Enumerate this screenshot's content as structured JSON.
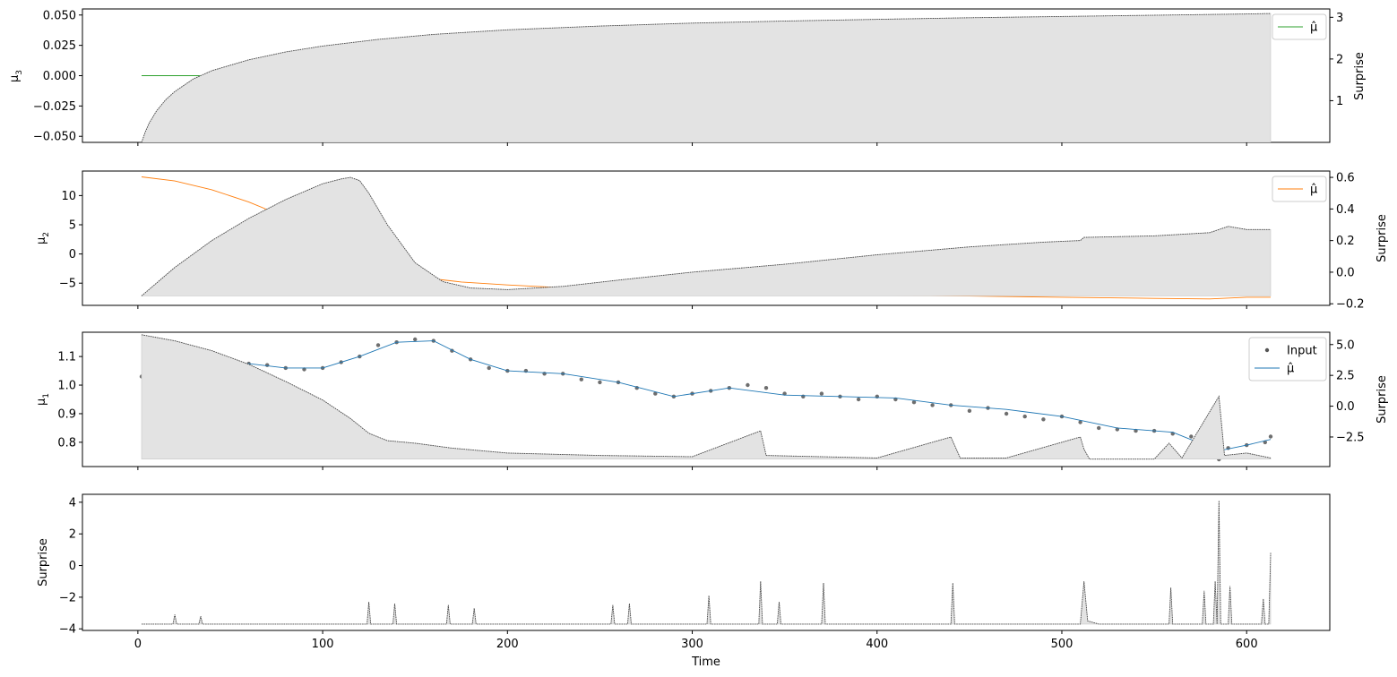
{
  "chart_data": [
    {
      "type": "line",
      "panel": "mu3",
      "ylabel": "μ",
      "ylabel_sub": "3",
      "ylim": [
        -0.055,
        0.055
      ],
      "yticks": [
        -0.05,
        -0.025,
        0.0,
        0.025,
        0.05
      ],
      "ytick_labels": [
        "−0.050",
        "−0.025",
        "0.000",
        "0.025",
        "0.050"
      ],
      "y2label": "Surprise",
      "y2lim": [
        0.0,
        3.2
      ],
      "y2ticks": [
        1,
        2,
        3
      ],
      "y2tick_labels": [
        "1",
        "2",
        "3"
      ],
      "xlim": [
        -30,
        645
      ],
      "legend": {
        "placement": "top-right",
        "entries": [
          {
            "label": "μ̂",
            "color": "#2ca02c",
            "marker": "line"
          }
        ]
      },
      "series": [
        {
          "name": "μ̂",
          "axis": "left",
          "color": "#2ca02c",
          "x": [
            2,
            613
          ],
          "values": [
            0.0,
            0.0
          ]
        },
        {
          "name": "Surprise",
          "axis": "right",
          "style": "filled-dotted",
          "color": "#444444",
          "x": [
            2,
            4,
            6,
            10,
            15,
            20,
            30,
            40,
            60,
            80,
            100,
            130,
            160,
            200,
            250,
            300,
            350,
            400,
            450,
            500,
            550,
            600,
            613
          ],
          "values": [
            0.0,
            0.25,
            0.45,
            0.75,
            1.02,
            1.22,
            1.52,
            1.72,
            1.98,
            2.17,
            2.31,
            2.47,
            2.59,
            2.7,
            2.79,
            2.86,
            2.91,
            2.95,
            2.99,
            3.02,
            3.05,
            3.08,
            3.09
          ]
        }
      ]
    },
    {
      "type": "line",
      "panel": "mu2",
      "ylabel": "μ",
      "ylabel_sub": "2",
      "ylim": [
        -8.8,
        14.2
      ],
      "yticks": [
        -5,
        0,
        5,
        10
      ],
      "ytick_labels": [
        "−5",
        "0",
        "5",
        "10"
      ],
      "y2label": "Surprise",
      "y2lim": [
        -0.21,
        0.64
      ],
      "y2ticks": [
        -0.2,
        0.0,
        0.2,
        0.4,
        0.6
      ],
      "y2tick_labels": [
        "−0.2",
        "0.0",
        "0.2",
        "0.4",
        "0.6"
      ],
      "xlim": [
        -30,
        645
      ],
      "legend": {
        "placement": "top-right",
        "entries": [
          {
            "label": "μ̂",
            "color": "#ff7f0e",
            "marker": "line"
          }
        ]
      },
      "series": [
        {
          "name": "μ̂",
          "axis": "left",
          "color": "#ff7f0e",
          "x": [
            2,
            20,
            40,
            60,
            80,
            100,
            115,
            130,
            150,
            175,
            200,
            250,
            300,
            350,
            400,
            450,
            500,
            550,
            580,
            600,
            613
          ],
          "values": [
            13.2,
            12.5,
            11.0,
            8.9,
            6.3,
            3.3,
            0.9,
            -1.9,
            -3.9,
            -4.8,
            -5.3,
            -6.1,
            -6.6,
            -6.9,
            -7.0,
            -7.2,
            -7.4,
            -7.6,
            -7.7,
            -7.4,
            -7.4
          ]
        },
        {
          "name": "Surprise",
          "axis": "right",
          "style": "filled-dotted",
          "color": "#444444",
          "x": [
            2,
            20,
            40,
            60,
            80,
            100,
            110,
            115,
            120,
            125,
            135,
            150,
            165,
            180,
            200,
            230,
            260,
            300,
            350,
            400,
            450,
            490,
            510,
            512,
            550,
            580,
            590,
            600,
            613
          ],
          "values": [
            -0.15,
            0.03,
            0.2,
            0.34,
            0.46,
            0.56,
            0.59,
            0.6,
            0.58,
            0.5,
            0.3,
            0.06,
            -0.06,
            -0.1,
            -0.11,
            -0.09,
            -0.05,
            0.0,
            0.05,
            0.11,
            0.16,
            0.19,
            0.2,
            0.22,
            0.23,
            0.25,
            0.29,
            0.27,
            0.27
          ]
        }
      ]
    },
    {
      "type": "line",
      "panel": "mu1",
      "ylabel": "μ",
      "ylabel_sub": "1",
      "ylim": [
        0.715,
        1.185
      ],
      "yticks": [
        0.8,
        0.9,
        1.0,
        1.1
      ],
      "ytick_labels": [
        "0.8",
        "0.9",
        "1.0",
        "1.1"
      ],
      "y2label": "Surprise",
      "y2lim": [
        -4.9,
        6.0
      ],
      "y2ticks": [
        -2.5,
        0.0,
        2.5,
        5.0
      ],
      "y2tick_labels": [
        "−2.5",
        "0.0",
        "2.5",
        "5.0"
      ],
      "xlim": [
        -30,
        645
      ],
      "legend": {
        "placement": "top-right",
        "entries": [
          {
            "label": "Input",
            "color": "#555555",
            "marker": "dot"
          },
          {
            "label": "μ̂",
            "color": "#1f77b4",
            "marker": "line"
          }
        ]
      },
      "series": [
        {
          "name": "Input",
          "axis": "left",
          "style": "points",
          "color": "#555555",
          "x": [
            2,
            10,
            20,
            30,
            40,
            50,
            60,
            70,
            80,
            90,
            100,
            110,
            120,
            130,
            140,
            150,
            160,
            170,
            180,
            190,
            200,
            210,
            220,
            230,
            240,
            250,
            260,
            270,
            280,
            290,
            300,
            310,
            320,
            330,
            340,
            350,
            360,
            370,
            380,
            390,
            400,
            410,
            420,
            430,
            440,
            450,
            460,
            470,
            480,
            490,
            500,
            510,
            520,
            530,
            540,
            550,
            560,
            570,
            580,
            585,
            590,
            600,
            610,
            613
          ],
          "values": [
            1.03,
            1.02,
            1.04,
            1.05,
            1.06,
            1.07,
            1.075,
            1.07,
            1.06,
            1.055,
            1.06,
            1.08,
            1.1,
            1.14,
            1.15,
            1.16,
            1.155,
            1.12,
            1.09,
            1.06,
            1.05,
            1.05,
            1.04,
            1.04,
            1.02,
            1.01,
            1.01,
            0.99,
            0.97,
            0.96,
            0.97,
            0.98,
            0.99,
            1.0,
            0.99,
            0.97,
            0.96,
            0.97,
            0.96,
            0.95,
            0.96,
            0.95,
            0.94,
            0.93,
            0.93,
            0.91,
            0.92,
            0.9,
            0.89,
            0.88,
            0.89,
            0.87,
            0.85,
            0.845,
            0.84,
            0.84,
            0.83,
            0.82,
            0.81,
            0.74,
            0.78,
            0.79,
            0.8,
            0.82
          ]
        },
        {
          "name": "μ̂",
          "axis": "left",
          "color": "#1f77b4",
          "x": [
            2,
            20,
            40,
            60,
            80,
            100,
            120,
            140,
            160,
            180,
            200,
            230,
            260,
            290,
            320,
            350,
            380,
            410,
            440,
            470,
            500,
            530,
            560,
            585,
            600,
            613
          ],
          "values": [
            1.03,
            1.03,
            1.06,
            1.075,
            1.06,
            1.06,
            1.1,
            1.15,
            1.155,
            1.09,
            1.05,
            1.04,
            1.01,
            0.96,
            0.99,
            0.965,
            0.96,
            0.955,
            0.93,
            0.915,
            0.89,
            0.85,
            0.835,
            0.77,
            0.79,
            0.81
          ]
        },
        {
          "name": "Surprise",
          "axis": "right",
          "style": "filled-dotted",
          "color": "#444444",
          "x": [
            2,
            20,
            40,
            60,
            80,
            100,
            115,
            125,
            135,
            150,
            170,
            200,
            250,
            300,
            337,
            340,
            370,
            400,
            440,
            445,
            470,
            510,
            512,
            515,
            550,
            558,
            565,
            585,
            588,
            600,
            613
          ],
          "values": [
            5.8,
            5.3,
            4.5,
            3.4,
            2.0,
            0.5,
            -1.0,
            -2.2,
            -2.8,
            -3.0,
            -3.4,
            -3.8,
            -4.0,
            -4.1,
            -2.0,
            -4.0,
            -4.1,
            -4.2,
            -2.5,
            -4.2,
            -4.2,
            -2.5,
            -3.5,
            -4.3,
            -4.3,
            -3.0,
            -4.2,
            0.8,
            -4.0,
            -3.8,
            -4.2
          ]
        }
      ]
    },
    {
      "type": "area",
      "panel": "surprise",
      "ylabel": "Surprise",
      "xlabel": "Time",
      "ylim": [
        -4.1,
        4.5
      ],
      "yticks": [
        -4,
        -2,
        0,
        2,
        4
      ],
      "ytick_labels": [
        "−4",
        "−2",
        "0",
        "2",
        "4"
      ],
      "xlim": [
        -30,
        645
      ],
      "xticks": [
        0,
        100,
        200,
        300,
        400,
        500,
        600
      ],
      "xtick_labels": [
        "0",
        "100",
        "200",
        "300",
        "400",
        "500",
        "600"
      ],
      "series": [
        {
          "name": "Surprise",
          "style": "filled-dotted",
          "color": "#444444",
          "x": [
            2,
            19,
            20,
            21,
            33,
            34,
            35,
            100,
            124,
            125,
            126,
            138,
            139,
            140,
            167,
            168,
            169,
            181,
            182,
            183,
            256,
            257,
            258,
            265,
            266,
            267,
            308,
            309,
            310,
            336,
            337,
            338,
            346,
            347,
            348,
            370,
            371,
            372,
            440,
            441,
            442,
            510,
            512,
            514,
            520,
            558,
            559,
            560,
            576,
            577,
            578,
            582,
            583,
            584,
            585,
            586,
            587,
            590,
            591,
            592,
            608,
            609,
            610,
            612,
            613
          ],
          "values": [
            -3.7,
            -3.7,
            -3.1,
            -3.7,
            -3.7,
            -3.2,
            -3.7,
            -3.7,
            -3.7,
            -2.3,
            -3.7,
            -3.7,
            -2.4,
            -3.7,
            -3.7,
            -2.5,
            -3.7,
            -3.7,
            -2.7,
            -3.7,
            -3.7,
            -2.5,
            -3.7,
            -3.7,
            -2.4,
            -3.7,
            -3.7,
            -1.9,
            -3.7,
            -3.7,
            -1.0,
            -3.7,
            -3.7,
            -2.3,
            -3.7,
            -3.7,
            -1.1,
            -3.7,
            -3.7,
            -1.1,
            -3.7,
            -3.7,
            -1.0,
            -3.5,
            -3.7,
            -3.7,
            -1.4,
            -3.7,
            -3.7,
            -1.6,
            -3.7,
            -3.7,
            -1.0,
            -3.7,
            4.1,
            -3.7,
            -3.7,
            -3.7,
            -1.3,
            -3.7,
            -3.7,
            -2.1,
            -3.7,
            -3.7,
            0.8
          ]
        }
      ]
    }
  ]
}
